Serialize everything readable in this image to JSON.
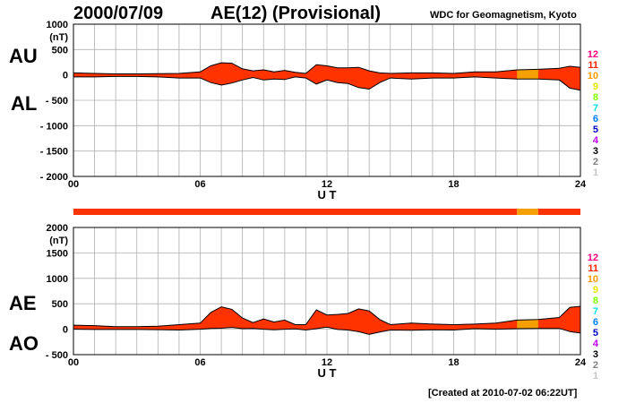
{
  "header": {
    "date": "2000/07/09",
    "title": "AE(12) (Provisional)",
    "credit": "WDC for Geomagnetism, Kyoto",
    "created": "[Created at 2010-07-02 06:22UT]"
  },
  "labels": {
    "au": "AU",
    "al": "AL",
    "ae": "AE",
    "ao": "AO"
  },
  "colors": {
    "fill_red": "#ff3300",
    "fill_orange": "#f5a000",
    "station_bar_red": "#ff3300",
    "station_bar_orange": "#f5a000",
    "grid": "#b0b0b0"
  },
  "station_legend": [
    {
      "n": "12",
      "color": "#ff0080"
    },
    {
      "n": "11",
      "color": "#ff2000"
    },
    {
      "n": "10",
      "color": "#ff9900"
    },
    {
      "n": "9",
      "color": "#e6e600"
    },
    {
      "n": "8",
      "color": "#80ff00"
    },
    {
      "n": "7",
      "color": "#00e0e0"
    },
    {
      "n": "6",
      "color": "#0080ff"
    },
    {
      "n": "5",
      "color": "#0000c0"
    },
    {
      "n": "4",
      "color": "#c000ff"
    },
    {
      "n": "3",
      "color": "#000000"
    },
    {
      "n": "2",
      "color": "#808080"
    },
    {
      "n": "1",
      "color": "#c8c8c8"
    }
  ],
  "chart_data": [
    {
      "type": "area",
      "panel": "AU/AL",
      "xlabel": "U T",
      "ylabel": "(nT)",
      "xlim": [
        0,
        24
      ],
      "ylim": [
        -2000,
        1000
      ],
      "xticks": [
        "00",
        "06",
        "12",
        "18",
        "24"
      ],
      "yticks": [
        "1000",
        "500",
        "0",
        "- 500",
        "- 1000",
        "- 1500",
        "- 2000"
      ],
      "ytick_values": [
        1000,
        500,
        0,
        -500,
        -1000,
        -1500,
        -2000
      ],
      "grid": true,
      "x": [
        0,
        1,
        2,
        3,
        4,
        5,
        6,
        6.5,
        7,
        7.5,
        8,
        8.5,
        9,
        9.5,
        10,
        10.5,
        11,
        11.5,
        12,
        12.5,
        13,
        13.5,
        14,
        14.5,
        15,
        16,
        17,
        18,
        19,
        20,
        21,
        22,
        23,
        23.5,
        24
      ],
      "series": [
        {
          "name": "AU",
          "values": [
            40,
            30,
            20,
            20,
            25,
            30,
            60,
            180,
            240,
            230,
            120,
            80,
            100,
            60,
            90,
            50,
            30,
            200,
            180,
            140,
            140,
            150,
            80,
            40,
            30,
            40,
            40,
            30,
            60,
            60,
            100,
            110,
            130,
            170,
            150
          ]
        },
        {
          "name": "AL",
          "values": [
            -40,
            -40,
            -30,
            -30,
            -40,
            -60,
            -60,
            -150,
            -200,
            -160,
            -100,
            -50,
            -100,
            -80,
            -90,
            -40,
            -60,
            -180,
            -100,
            -150,
            -170,
            -250,
            -280,
            -150,
            -60,
            -80,
            -60,
            -60,
            -40,
            -60,
            -80,
            -80,
            -100,
            -260,
            -300
          ]
        }
      ],
      "provisional_stations": [
        {
          "from": 0,
          "to": 21,
          "stations": 11
        },
        {
          "from": 21,
          "to": 22,
          "stations": 10
        },
        {
          "from": 22,
          "to": 24,
          "stations": 11
        }
      ]
    },
    {
      "type": "area",
      "panel": "AE/AO",
      "xlabel": "U T",
      "ylabel": "(nT)",
      "xlim": [
        0,
        24
      ],
      "ylim": [
        -500,
        2000
      ],
      "xticks": [
        "00",
        "06",
        "12",
        "18",
        "24"
      ],
      "yticks": [
        "2000",
        "1500",
        "1000",
        "500",
        "0",
        "- 500"
      ],
      "ytick_values": [
        2000,
        1500,
        1000,
        500,
        0,
        -500
      ],
      "grid": true,
      "x": [
        0,
        1,
        2,
        3,
        4,
        5,
        6,
        6.5,
        7,
        7.5,
        8,
        8.5,
        9,
        9.5,
        10,
        10.5,
        11,
        11.5,
        12,
        12.5,
        13,
        13.5,
        14,
        14.5,
        15,
        16,
        17,
        18,
        19,
        20,
        21,
        22,
        23,
        23.5,
        24
      ],
      "series": [
        {
          "name": "AE",
          "values": [
            80,
            70,
            50,
            50,
            60,
            90,
            120,
            330,
            440,
            390,
            220,
            130,
            200,
            140,
            180,
            90,
            90,
            380,
            280,
            290,
            310,
            400,
            360,
            190,
            90,
            120,
            100,
            90,
            100,
            120,
            180,
            190,
            230,
            430,
            450
          ]
        },
        {
          "name": "AO",
          "values": [
            0,
            -5,
            -5,
            -5,
            -8,
            -15,
            0,
            15,
            20,
            35,
            10,
            15,
            0,
            -10,
            0,
            5,
            -15,
            10,
            40,
            -5,
            -15,
            -50,
            -100,
            -55,
            -15,
            -20,
            -10,
            -15,
            10,
            0,
            10,
            15,
            15,
            -45,
            -75
          ]
        }
      ]
    }
  ]
}
